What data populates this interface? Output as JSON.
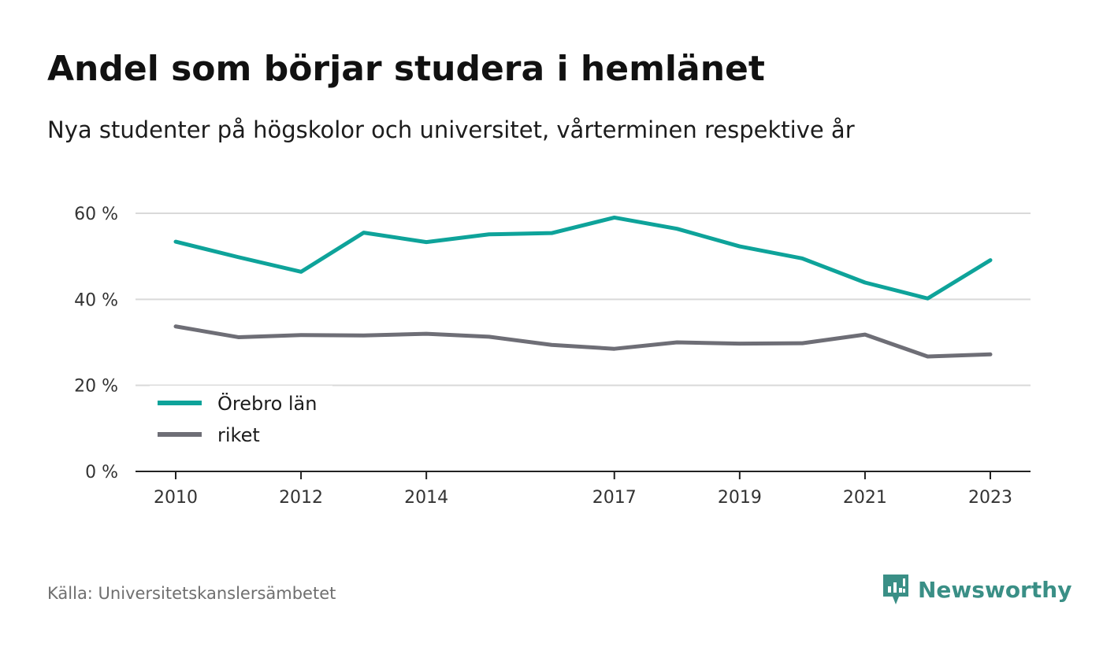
{
  "title": "Andel som börjar studera i hemlänet",
  "subtitle": "Nya studenter på högskolor och universitet, vårterminen respektive år",
  "source": "Källa: Universitetskanslersämbetet",
  "brand": {
    "name": "Newsworthy",
    "icon": "newsworthy-logo-icon",
    "color": "#3a8f86"
  },
  "chart_data": {
    "type": "line",
    "x": [
      2010,
      2011,
      2012,
      2013,
      2014,
      2015,
      2016,
      2017,
      2018,
      2019,
      2020,
      2021,
      2022,
      2023
    ],
    "x_tick_labels": [
      "2010",
      "2012",
      "2014",
      "2017",
      "2019",
      "2021",
      "2023"
    ],
    "y_tick_labels": [
      "0 %",
      "20 %",
      "40 %",
      "60 %"
    ],
    "ylim": [
      0,
      60
    ],
    "grid": true,
    "legend_position": "bottom-left",
    "series": [
      {
        "name": "Örebro län",
        "color": "#0ea39a",
        "values": [
          53.4,
          49.8,
          46.4,
          55.5,
          53.3,
          55.1,
          55.4,
          59.0,
          56.4,
          52.3,
          49.5,
          43.9,
          40.2,
          49.1
        ]
      },
      {
        "name": "riket",
        "color": "#6e6e76",
        "values": [
          33.7,
          31.2,
          31.7,
          31.6,
          32.0,
          31.3,
          29.4,
          28.5,
          30.0,
          29.7,
          29.8,
          31.8,
          26.7,
          27.2
        ]
      }
    ]
  }
}
